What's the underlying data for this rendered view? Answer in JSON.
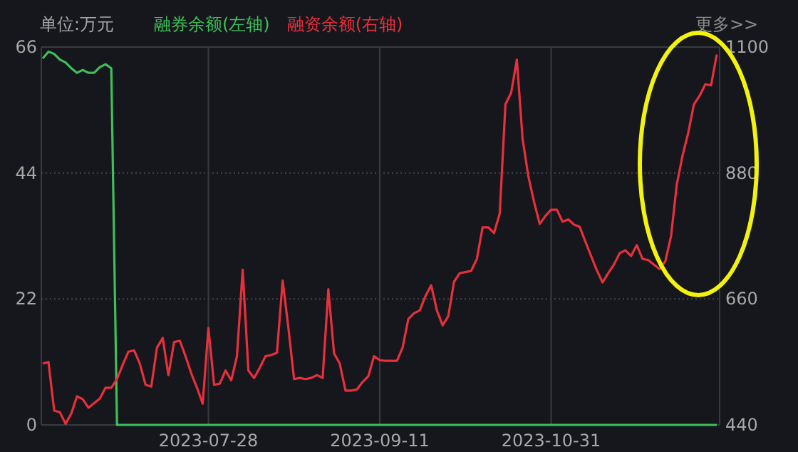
{
  "chart_data": {
    "type": "line",
    "ylabel": "单位:万元",
    "legend": "top",
    "grid": true,
    "categories": [
      null,
      null,
      null,
      null,
      null,
      null,
      null,
      null,
      null,
      null,
      null,
      null,
      null,
      null,
      null,
      null,
      null,
      null,
      null,
      null,
      null,
      null,
      null,
      null,
      null,
      null,
      null,
      null,
      null,
      "2023-07-28",
      null,
      null,
      null,
      null,
      null,
      null,
      null,
      null,
      null,
      null,
      null,
      null,
      null,
      null,
      null,
      null,
      null,
      null,
      null,
      null,
      null,
      null,
      null,
      null,
      null,
      null,
      null,
      null,
      null,
      "2023-09-11",
      null,
      null,
      null,
      null,
      null,
      null,
      null,
      null,
      null,
      null,
      null,
      null,
      null,
      null,
      null,
      null,
      null,
      null,
      null,
      null,
      null,
      null,
      null,
      null,
      null,
      null,
      null,
      null,
      null,
      "2023-10-31",
      null,
      null,
      null,
      null,
      null,
      null,
      null,
      null,
      null,
      null,
      null,
      null,
      null,
      null,
      null,
      null,
      null,
      null,
      null,
      null,
      null,
      null,
      null,
      null,
      null,
      null,
      null,
      null,
      null
    ],
    "ylim": [
      0,
      66
    ],
    "yticks": [
      0,
      22,
      44,
      66
    ],
    "y2lim": [
      440,
      1100
    ],
    "y2ticks": [
      440,
      660,
      880,
      1100
    ],
    "series": [
      {
        "name": "融券余额(左轴)",
        "color": "#3fbf5a",
        "values": [
          64,
          65.2,
          64.8,
          63.8,
          63.3,
          62.3,
          61.5,
          62,
          61.5,
          61.5,
          62.5,
          63,
          62.3,
          0,
          0,
          0,
          0,
          0,
          0,
          0,
          0,
          0,
          0,
          0,
          0,
          0,
          0,
          0,
          0,
          0,
          0,
          0,
          0,
          0,
          0,
          0,
          0,
          0,
          0,
          0,
          0,
          0,
          0,
          0,
          0,
          0,
          0,
          0,
          0,
          0,
          0,
          0,
          0,
          0,
          0,
          0,
          0,
          0,
          0,
          0,
          0,
          0,
          0,
          0,
          0,
          0,
          0,
          0,
          0,
          0,
          0,
          0,
          0,
          0,
          0,
          0,
          0,
          0,
          0,
          0,
          0,
          0,
          0,
          0,
          0,
          0,
          0,
          0,
          0,
          0,
          0,
          0,
          0,
          0,
          0,
          0,
          0,
          0,
          0,
          0,
          0,
          0,
          0,
          0,
          0,
          0,
          0,
          0,
          0,
          0,
          0,
          0,
          0,
          0,
          0,
          0,
          0,
          0,
          0
        ]
      },
      {
        "name": "融资余额(右轴)",
        "color": "#e8303c",
        "axis": "y2",
        "values": [
          547,
          550,
          465,
          462,
          442,
          460,
          490,
          485,
          470,
          478,
          486,
          505,
          505,
          520,
          545,
          568,
          570,
          547,
          510,
          507,
          575,
          592,
          527,
          585,
          587,
          560,
          530,
          505,
          477,
          609,
          510,
          512,
          535,
          518,
          560,
          711,
          535,
          522,
          540,
          560,
          562,
          566,
          692,
          610,
          520,
          522,
          520,
          522,
          527,
          522,
          677,
          565,
          547,
          500,
          500,
          502,
          515,
          525,
          560,
          553,
          552,
          552,
          552,
          575,
          625,
          635,
          640,
          665,
          684,
          640,
          614,
          630,
          690,
          705,
          707,
          709,
          730,
          785,
          785,
          775,
          809,
          1000,
          1020,
          1078,
          940,
          875,
          830,
          791,
          805,
          816,
          816,
          795,
          799,
          790,
          786,
          760,
          735,
          710,
          689,
          705,
          720,
          740,
          745,
          735,
          754,
          730,
          728,
          720,
          712,
          726,
          770,
          860,
          910,
          950,
          1000,
          1015,
          1035,
          1033,
          1087
        ]
      }
    ],
    "annotations": [
      "更多>>"
    ]
  }
}
